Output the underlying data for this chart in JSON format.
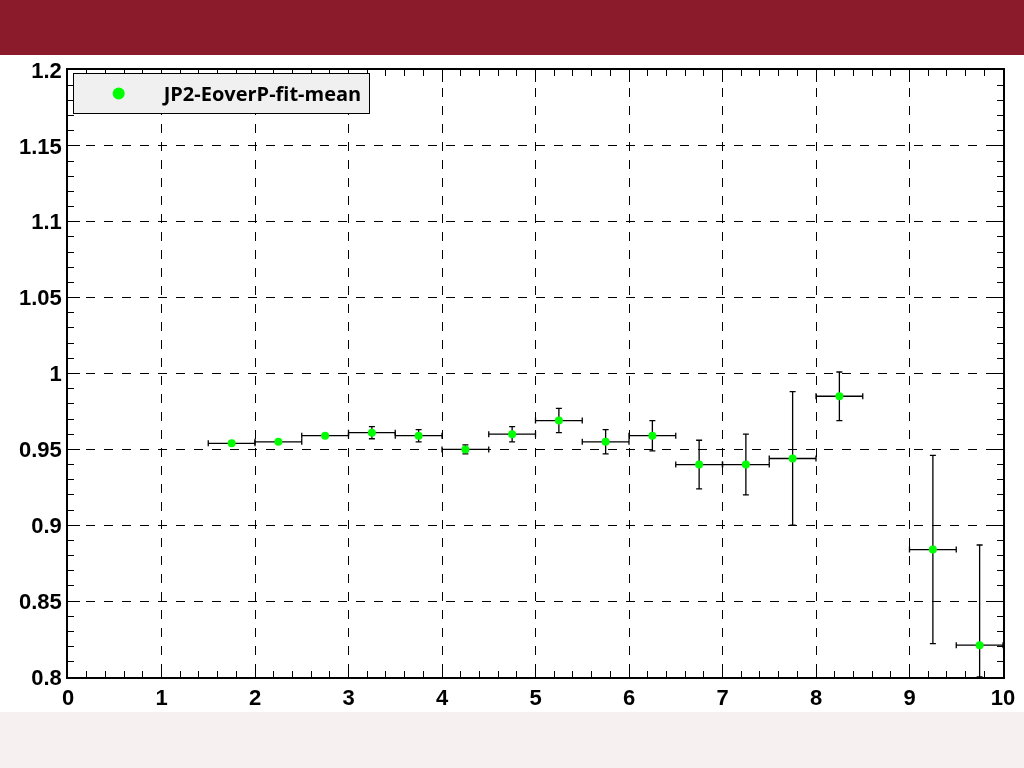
{
  "chart_data": {
    "type": "scatter",
    "x": [
      1.75,
      2.25,
      2.75,
      3.25,
      3.75,
      4.25,
      4.75,
      5.25,
      5.75,
      6.25,
      6.75,
      7.25,
      7.75,
      8.25,
      9.25,
      9.75
    ],
    "series": [
      {
        "name": "JP2-EoverP-fit-mean",
        "color": "#00ff00",
        "values": [
          0.954,
          0.955,
          0.959,
          0.961,
          0.959,
          0.95,
          0.96,
          0.969,
          0.955,
          0.959,
          0.94,
          0.94,
          0.944,
          0.985,
          0.884,
          0.821
        ],
        "errors": [
          null,
          null,
          null,
          0.004,
          0.004,
          0.003,
          0.005,
          0.008,
          0.008,
          0.01,
          0.016,
          0.02,
          0.044,
          0.016,
          0.062,
          [
            0.8,
            0.887
          ]
        ],
        "xerrors": [
          0.25,
          0.25,
          0.25,
          0.25,
          0.25,
          0.25,
          0.25,
          0.25,
          0.25,
          0.25,
          0.25,
          0.25,
          0.25,
          0.25,
          0.25,
          0.25
        ]
      }
    ],
    "xlim": [
      0,
      10
    ],
    "xticks": [
      0,
      1,
      2,
      3,
      4,
      5,
      6,
      7,
      8,
      9,
      10
    ],
    "ylim": [
      0.8,
      1.2
    ],
    "yticks": [
      0.8,
      0.85,
      0.9,
      0.95,
      1,
      1.05,
      1.1,
      1.15,
      1.2
    ],
    "grid": true,
    "legend": "top left",
    "marker": "circle"
  }
}
